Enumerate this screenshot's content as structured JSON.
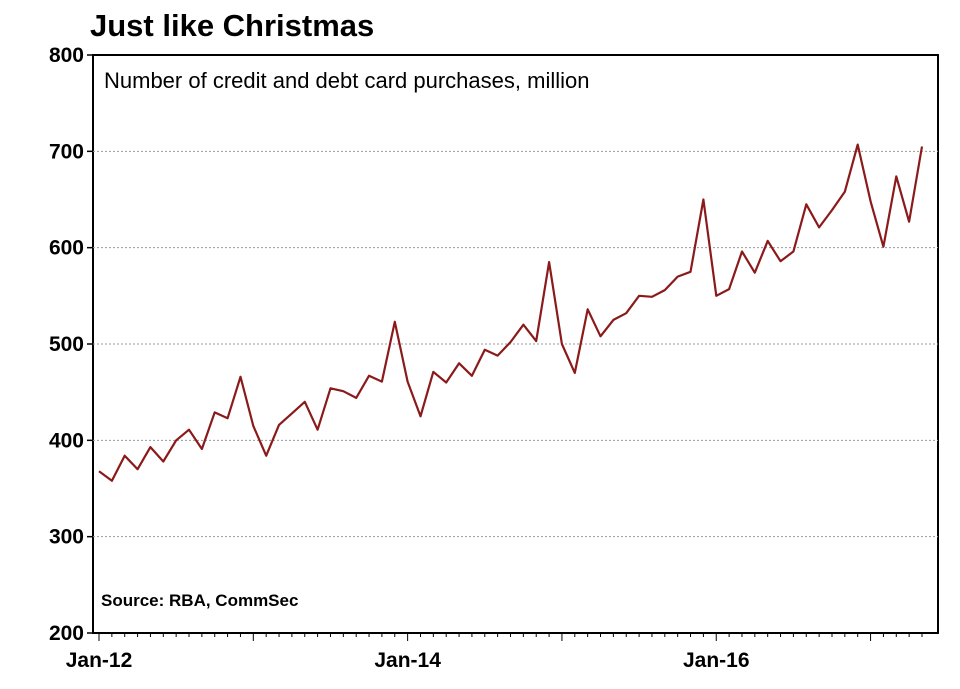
{
  "chart_data": {
    "type": "line",
    "title": "Just like Christmas",
    "subtitle": "Number of credit and debt card purchases, million",
    "source": "Source: RBA, CommSec",
    "xlabel": "",
    "ylabel": "",
    "ylim": [
      200,
      800
    ],
    "yticks": [
      200,
      300,
      400,
      500,
      600,
      700,
      800
    ],
    "xtick_labels": [
      {
        "label": "Jan-12",
        "index": 0
      },
      {
        "label": "Jan-14",
        "index": 24
      },
      {
        "label": "Jan-16",
        "index": 48
      }
    ],
    "grid": true,
    "line_color": "#8b1a1a",
    "series": [
      {
        "name": "Card purchases (million)",
        "start": "Jan-12",
        "frequency": "monthly",
        "values": [
          368,
          358,
          384,
          370,
          393,
          378,
          400,
          411,
          391,
          429,
          423,
          466,
          415,
          384,
          416,
          428,
          440,
          411,
          454,
          451,
          444,
          467,
          461,
          523,
          461,
          425,
          471,
          460,
          480,
          467,
          494,
          488,
          502,
          520,
          503,
          585,
          500,
          470,
          536,
          508,
          525,
          532,
          550,
          549,
          556,
          570,
          575,
          650,
          550,
          557,
          596,
          574,
          607,
          586,
          596,
          645,
          621,
          639,
          658,
          707,
          648,
          601,
          674,
          627,
          705
        ]
      }
    ]
  }
}
